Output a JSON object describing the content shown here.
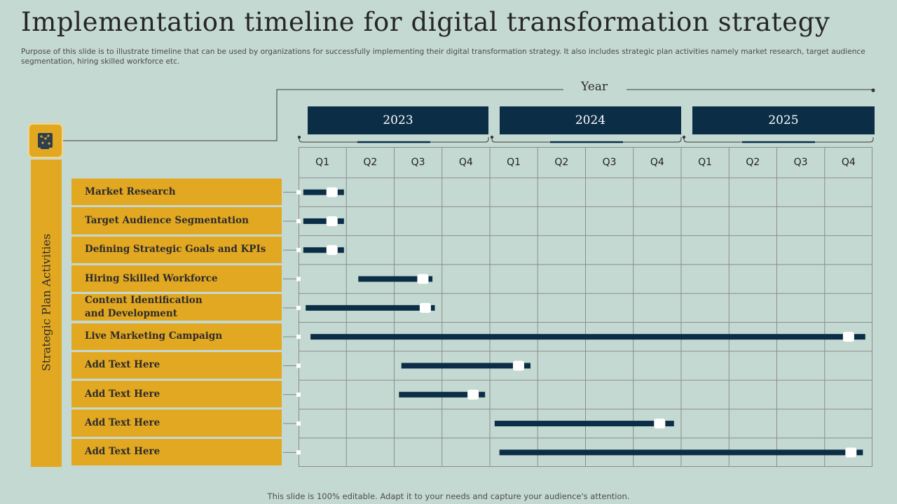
{
  "title": "Implementation timeline for digital transformation strategy",
  "subtitle": "Purpose of this slide is to illustrate timeline that can be used by organizations for successfully implementing their digital transformation strategy. It also includes strategic plan activities namely market research, target audience segmentation, hiring skilled workforce etc.",
  "timeline_header": "Year",
  "sidebar_label": "Strategic Plan Activities",
  "years": [
    "2023",
    "2024",
    "2025"
  ],
  "quarters": [
    "Q1",
    "Q2",
    "Q3",
    "Q4",
    "Q1",
    "Q2",
    "Q3",
    "Q4",
    "Q1",
    "Q2",
    "Q3",
    "Q4"
  ],
  "activities": [
    {
      "label": "Market Research",
      "start_q": 0.1,
      "end_q": 0.95,
      "milestone_q": 0.7
    },
    {
      "label": "Target Audience Segmentation",
      "start_q": 0.1,
      "end_q": 0.95,
      "milestone_q": 0.7
    },
    {
      "label": "Defining Strategic Goals and KPIs",
      "start_q": 0.1,
      "end_q": 0.95,
      "milestone_q": 0.7
    },
    {
      "label": "Hiring Skilled Workforce",
      "start_q": 1.25,
      "end_q": 2.8,
      "milestone_q": 2.6
    },
    {
      "label": "Content Identification and Development",
      "start_q": 0.15,
      "end_q": 2.85,
      "milestone_q": 2.65
    },
    {
      "label": "Live Marketing Campaign",
      "start_q": 0.25,
      "end_q": 11.85,
      "milestone_q": 11.5
    },
    {
      "label": "Add Text Here",
      "start_q": 2.15,
      "end_q": 4.85,
      "milestone_q": 4.6
    },
    {
      "label": "Add Text Here",
      "start_q": 2.1,
      "end_q": 3.9,
      "milestone_q": 3.65
    },
    {
      "label": "Add Text Here",
      "start_q": 4.1,
      "end_q": 7.85,
      "milestone_q": 7.55
    },
    {
      "label": "Add Text Here",
      "start_q": 4.2,
      "end_q": 11.8,
      "milestone_q": 11.55
    }
  ],
  "footer": "This slide is 100% editable. Adapt it to your needs and capture your audience's attention.",
  "colors": {
    "background": "#c5d9d3",
    "accent": "#e3a821",
    "navy": "#0b2e46",
    "grid": "#8c8c8c"
  },
  "icons": {
    "strategy": "strategy-plan-icon"
  }
}
